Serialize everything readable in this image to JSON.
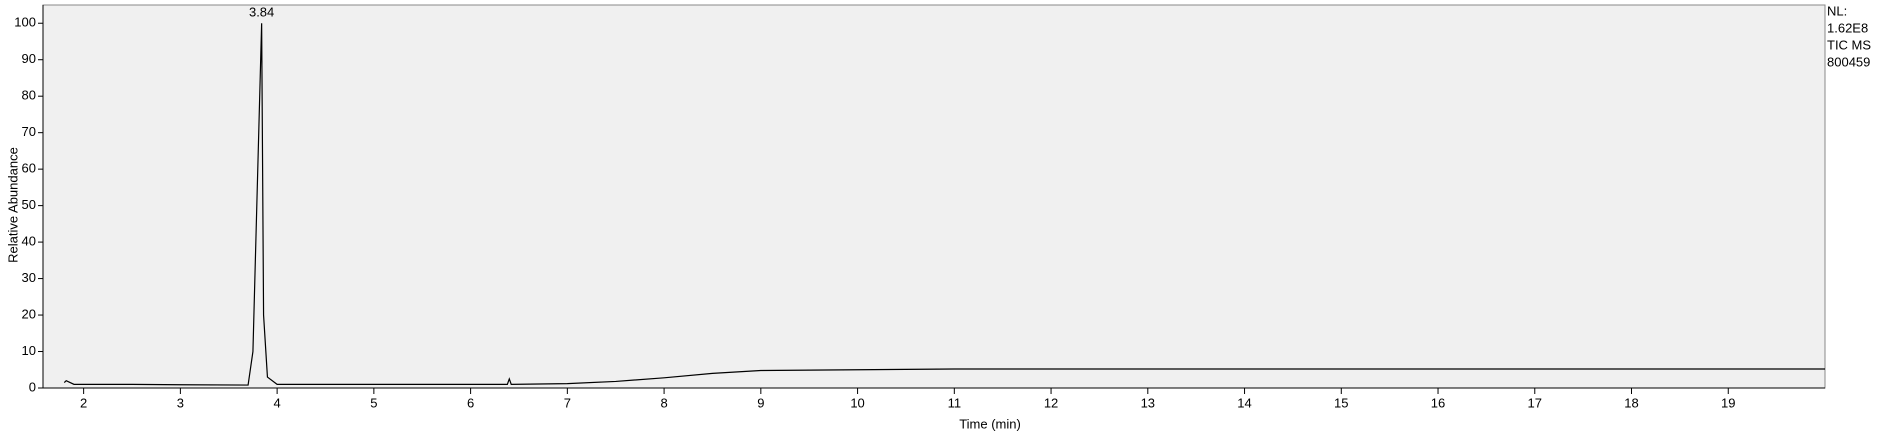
{
  "chart_data": {
    "type": "line",
    "xlabel": "Time (min)",
    "ylabel": "Relative Abundance",
    "annotations": [
      {
        "text": "3.84",
        "x": 3.84,
        "y": 100
      }
    ],
    "info": [
      "NL:",
      "1.62E8",
      "TIC  MS",
      "800459"
    ],
    "series": [
      {
        "name": "TIC MS",
        "color": "#000000",
        "x": [
          1.8,
          1.82,
          1.9,
          2.5,
          3.0,
          3.7,
          3.75,
          3.8,
          3.84,
          3.86,
          3.9,
          4.0,
          5.0,
          6.0,
          6.38,
          6.4,
          6.42,
          7.0,
          7.5,
          8.0,
          8.5,
          9.0,
          10.0,
          11.0,
          12.0,
          20.0
        ],
        "values": [
          1.5,
          2,
          1,
          1,
          0.9,
          0.8,
          10,
          60,
          100,
          20,
          3,
          1,
          1,
          1,
          1,
          2.5,
          1,
          1.2,
          1.8,
          2.8,
          4,
          4.8,
          5,
          5.2,
          5.2,
          5.2
        ]
      }
    ],
    "xlim": [
      1.58,
      20.0
    ],
    "ylim": [
      0,
      105
    ],
    "xticks": [
      2,
      3,
      4,
      5,
      6,
      7,
      8,
      9,
      10,
      11,
      12,
      13,
      14,
      15,
      16,
      17,
      18,
      19
    ],
    "yticks": [
      0,
      10,
      20,
      30,
      40,
      50,
      60,
      70,
      80,
      90,
      100
    ],
    "background": "#f0f0f0"
  }
}
